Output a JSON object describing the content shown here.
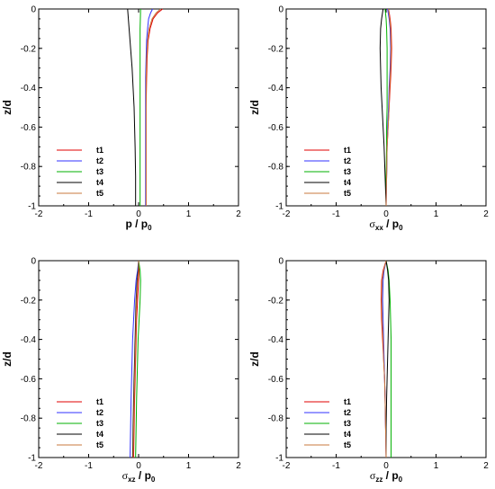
{
  "chart_data": [
    {
      "type": "line",
      "xlabel": "p / p",
      "xlabel_sub": "0",
      "ylabel": "z/d",
      "xlim": [
        -2,
        2
      ],
      "ylim": [
        -1,
        0
      ],
      "xticks": [
        "-2",
        "-1",
        "0",
        "1",
        "2"
      ],
      "yticks": [
        "0",
        "-0.2",
        "-0.4",
        "-0.6",
        "-0.8",
        "-1"
      ],
      "legend_position": "lower-left",
      "series": [
        {
          "name": "t1",
          "color": "#e00000",
          "x": [
            0.48,
            0.38,
            0.29,
            0.23,
            0.19,
            0.17,
            0.16,
            0.15,
            0.15,
            0.15,
            0.15
          ],
          "y": [
            0,
            -0.02,
            -0.05,
            -0.1,
            -0.16,
            -0.25,
            -0.35,
            -0.5,
            -0.65,
            -0.8,
            -1.0
          ]
        },
        {
          "name": "t2",
          "color": "#3030ff",
          "x": [
            0.28,
            0.24,
            0.2,
            0.18,
            0.16,
            0.15,
            0.14,
            0.14,
            0.14,
            0.14,
            0.14
          ],
          "y": [
            0,
            -0.02,
            -0.05,
            -0.1,
            -0.16,
            -0.25,
            -0.35,
            -0.5,
            -0.65,
            -0.8,
            -1.0
          ]
        },
        {
          "name": "t3",
          "color": "#00b000",
          "x": [
            0.04,
            0.03,
            0.03,
            0.03,
            0.03,
            0.03,
            0.03,
            0.03,
            0.03,
            0.03,
            0.03
          ],
          "y": [
            0,
            -0.1,
            -0.2,
            -0.3,
            -0.4,
            -0.5,
            -0.6,
            -0.7,
            -0.8,
            -0.9,
            -1.0
          ]
        },
        {
          "name": "t4",
          "color": "#000000",
          "x": [
            -0.22,
            -0.19,
            -0.16,
            -0.13,
            -0.11,
            -0.09,
            -0.08,
            -0.07,
            -0.06,
            -0.06
          ],
          "y": [
            0,
            -0.1,
            -0.2,
            -0.3,
            -0.4,
            -0.5,
            -0.6,
            -0.7,
            -0.85,
            -1.0
          ]
        },
        {
          "name": "t5",
          "color": "#c8783c",
          "x": [
            0.44,
            0.35,
            0.27,
            0.21,
            0.18,
            0.16,
            0.15,
            0.15,
            0.15,
            0.15,
            0.15
          ],
          "y": [
            0,
            -0.02,
            -0.05,
            -0.1,
            -0.16,
            -0.25,
            -0.35,
            -0.5,
            -0.65,
            -0.8,
            -1.0
          ]
        }
      ]
    },
    {
      "type": "line",
      "xlabel": "σ",
      "xlabel_sub": "xx",
      "xlabel_rest": " / p",
      "xlabel_sub2": "0",
      "ylabel": "z/d",
      "xlim": [
        -2,
        2
      ],
      "ylim": [
        -1,
        0
      ],
      "xticks": [
        "-2",
        "-1",
        "0",
        "1",
        "2"
      ],
      "yticks": [
        "0",
        "-0.2",
        "-0.4",
        "-0.6",
        "-0.8",
        "-1"
      ],
      "legend_position": "lower-left",
      "series": [
        {
          "name": "t1",
          "color": "#e00000",
          "x": [
            0.05,
            0.08,
            0.1,
            0.11,
            0.1,
            0.08,
            0.06,
            0.04,
            0.02,
            0.01,
            0.0
          ],
          "y": [
            0,
            -0.05,
            -0.1,
            -0.2,
            -0.3,
            -0.4,
            -0.5,
            -0.6,
            -0.7,
            -0.85,
            -1.0
          ]
        },
        {
          "name": "t2",
          "color": "#3030ff",
          "x": [
            0.03,
            0.06,
            0.08,
            0.09,
            0.08,
            0.06,
            0.05,
            0.03,
            0.02,
            0.01,
            0.0
          ],
          "y": [
            0,
            -0.05,
            -0.1,
            -0.2,
            -0.3,
            -0.4,
            -0.5,
            -0.6,
            -0.7,
            -0.85,
            -1.0
          ]
        },
        {
          "name": "t3",
          "color": "#00b000",
          "x": [
            -0.02,
            0.0,
            0.01,
            0.02,
            0.02,
            0.02,
            0.02,
            0.01,
            0.01,
            0.0,
            0.0
          ],
          "y": [
            0,
            -0.05,
            -0.1,
            -0.2,
            -0.3,
            -0.4,
            -0.5,
            -0.6,
            -0.7,
            -0.85,
            -1.0
          ]
        },
        {
          "name": "t4",
          "color": "#000000",
          "x": [
            -0.06,
            -0.09,
            -0.11,
            -0.12,
            -0.11,
            -0.1,
            -0.08,
            -0.06,
            -0.04,
            -0.02,
            0.0
          ],
          "y": [
            0,
            -0.05,
            -0.1,
            -0.2,
            -0.3,
            -0.4,
            -0.5,
            -0.6,
            -0.7,
            -0.85,
            -1.0
          ]
        },
        {
          "name": "t5",
          "color": "#c8783c",
          "x": [
            0.05,
            0.07,
            0.09,
            0.1,
            0.09,
            0.07,
            0.06,
            0.04,
            0.02,
            0.01,
            0.0
          ],
          "y": [
            0,
            -0.05,
            -0.1,
            -0.2,
            -0.3,
            -0.4,
            -0.5,
            -0.6,
            -0.7,
            -0.85,
            -1.0
          ]
        }
      ]
    },
    {
      "type": "line",
      "xlabel": "σ",
      "xlabel_sub": "xz",
      "xlabel_rest": " / p",
      "xlabel_sub2": "0",
      "ylabel": "z/d",
      "xlim": [
        -2,
        2
      ],
      "ylim": [
        -1,
        0
      ],
      "xticks": [
        "-2",
        "-1",
        "0",
        "1",
        "2"
      ],
      "yticks": [
        "0",
        "-0.2",
        "-0.4",
        "-0.6",
        "-0.8",
        "-1"
      ],
      "legend_position": "lower-left",
      "series": [
        {
          "name": "t1",
          "color": "#e00000",
          "x": [
            0.0,
            0.01,
            0.0,
            -0.02,
            -0.04,
            -0.05,
            -0.06,
            -0.07,
            -0.08,
            -0.09,
            -0.1
          ],
          "y": [
            0,
            -0.05,
            -0.1,
            -0.2,
            -0.3,
            -0.4,
            -0.5,
            -0.6,
            -0.7,
            -0.85,
            -1.0
          ]
        },
        {
          "name": "t2",
          "color": "#3030ff",
          "x": [
            0.0,
            -0.02,
            -0.05,
            -0.08,
            -0.1,
            -0.12,
            -0.13,
            -0.14,
            -0.15,
            -0.16,
            -0.17
          ],
          "y": [
            0,
            -0.05,
            -0.1,
            -0.2,
            -0.3,
            -0.4,
            -0.5,
            -0.6,
            -0.7,
            -0.85,
            -1.0
          ]
        },
        {
          "name": "t3",
          "color": "#00b000",
          "x": [
            0.0,
            0.03,
            0.04,
            0.03,
            0.01,
            -0.01,
            -0.02,
            -0.03,
            -0.04,
            -0.05,
            -0.06
          ],
          "y": [
            0,
            -0.05,
            -0.1,
            -0.2,
            -0.3,
            -0.4,
            -0.5,
            -0.6,
            -0.7,
            -0.85,
            -1.0
          ]
        },
        {
          "name": "t4",
          "color": "#000000",
          "x": [
            0.0,
            -0.01,
            -0.03,
            -0.05,
            -0.06,
            -0.07,
            -0.08,
            -0.09,
            -0.1,
            -0.11,
            -0.12
          ],
          "y": [
            0,
            -0.05,
            -0.1,
            -0.2,
            -0.3,
            -0.4,
            -0.5,
            -0.6,
            -0.7,
            -0.85,
            -1.0
          ]
        },
        {
          "name": "t5",
          "color": "#c8783c",
          "x": [
            0.0,
            0.0,
            -0.02,
            -0.04,
            -0.05,
            -0.06,
            -0.07,
            -0.08,
            -0.09,
            -0.1,
            -0.11
          ],
          "y": [
            0,
            -0.05,
            -0.1,
            -0.2,
            -0.3,
            -0.4,
            -0.5,
            -0.6,
            -0.7,
            -0.85,
            -1.0
          ]
        }
      ]
    },
    {
      "type": "line",
      "xlabel": "σ",
      "xlabel_sub": "zz",
      "xlabel_rest": " / p",
      "xlabel_sub2": "0",
      "ylabel": "z/d",
      "xlim": [
        -2,
        2
      ],
      "ylim": [
        -1,
        0
      ],
      "xticks": [
        "-2",
        "-1",
        "0",
        "1",
        "2"
      ],
      "yticks": [
        "0",
        "-0.2",
        "-0.4",
        "-0.6",
        "-0.8",
        "-1"
      ],
      "legend_position": "lower-left",
      "series": [
        {
          "name": "t1",
          "color": "#e00000",
          "x": [
            0.0,
            -0.06,
            -0.09,
            -0.1,
            -0.09,
            -0.07,
            -0.05,
            -0.03,
            -0.02,
            -0.01,
            0.0
          ],
          "y": [
            0,
            -0.05,
            -0.1,
            -0.2,
            -0.3,
            -0.4,
            -0.5,
            -0.6,
            -0.7,
            -0.85,
            -1.0
          ]
        },
        {
          "name": "t2",
          "color": "#3030ff",
          "x": [
            0.0,
            -0.04,
            -0.06,
            -0.07,
            -0.06,
            -0.05,
            -0.04,
            -0.03,
            -0.02,
            -0.01,
            0.0
          ],
          "y": [
            0,
            -0.05,
            -0.1,
            -0.2,
            -0.3,
            -0.4,
            -0.5,
            -0.6,
            -0.7,
            -0.85,
            -1.0
          ]
        },
        {
          "name": "t3",
          "color": "#00b000",
          "x": [
            0.0,
            0.04,
            0.06,
            0.08,
            0.09,
            0.1,
            0.1,
            0.1,
            0.1,
            0.1,
            0.1
          ],
          "y": [
            0,
            -0.05,
            -0.1,
            -0.2,
            -0.3,
            -0.4,
            -0.5,
            -0.6,
            -0.7,
            -0.85,
            -1.0
          ]
        },
        {
          "name": "t4",
          "color": "#000000",
          "x": [
            0.0,
            0.03,
            0.05,
            0.06,
            0.05,
            0.04,
            0.03,
            0.02,
            0.01,
            0.0,
            0.0
          ],
          "y": [
            0,
            -0.05,
            -0.1,
            -0.2,
            -0.3,
            -0.4,
            -0.5,
            -0.6,
            -0.7,
            -0.85,
            -1.0
          ]
        },
        {
          "name": "t5",
          "color": "#c8783c",
          "x": [
            0.0,
            -0.05,
            -0.08,
            -0.09,
            -0.08,
            -0.06,
            -0.05,
            -0.03,
            -0.02,
            -0.01,
            0.0
          ],
          "y": [
            0,
            -0.05,
            -0.1,
            -0.2,
            -0.3,
            -0.4,
            -0.5,
            -0.6,
            -0.7,
            -0.85,
            -1.0
          ]
        }
      ]
    }
  ]
}
